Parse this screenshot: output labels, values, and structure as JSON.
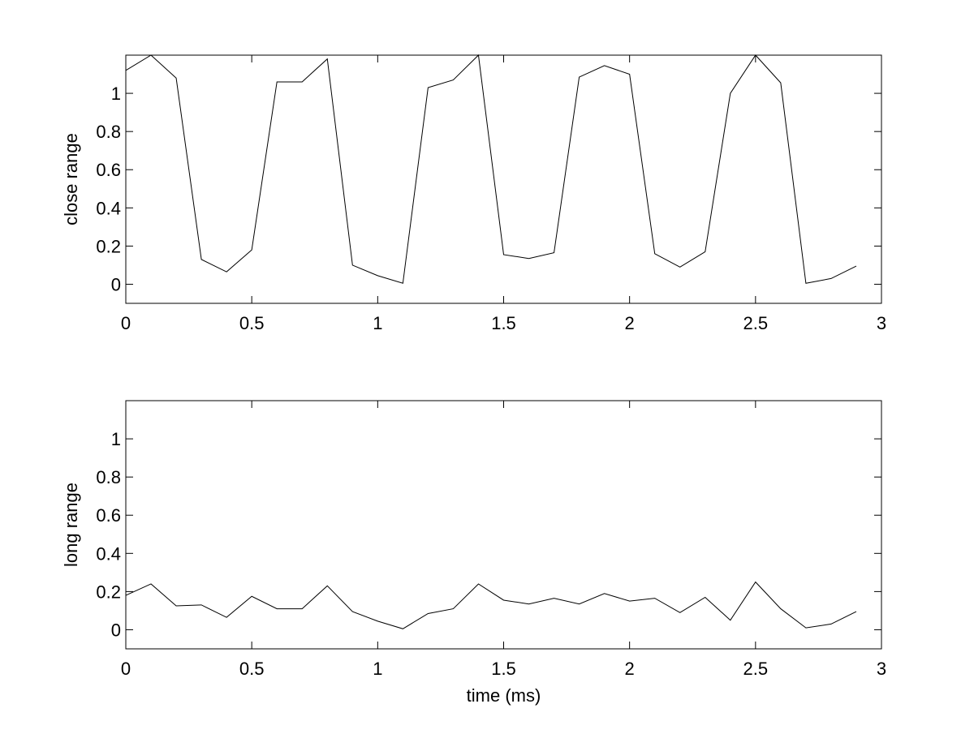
{
  "chart_data": [
    {
      "type": "line",
      "ylabel": "close range",
      "x": [
        0,
        0.1,
        0.2,
        0.3,
        0.4,
        0.5,
        0.6,
        0.7,
        0.8,
        0.9,
        1.0,
        1.1,
        1.2,
        1.3,
        1.4,
        1.5,
        1.6,
        1.7,
        1.8,
        1.9,
        2.0,
        2.1,
        2.2,
        2.3,
        2.4,
        2.5,
        2.6,
        2.7,
        2.8,
        2.9
      ],
      "series": [
        {
          "color": "#000000",
          "values": [
            1.12,
            1.2,
            1.08,
            0.13,
            0.065,
            0.18,
            1.06,
            1.06,
            1.18,
            0.1,
            0.045,
            0.005,
            1.03,
            1.07,
            1.2,
            0.155,
            0.135,
            0.165,
            1.085,
            1.145,
            1.1,
            0.16,
            0.09,
            0.17,
            1.0,
            1.2,
            1.055,
            0.005,
            0.03,
            0.095
          ]
        }
      ],
      "xlim": [
        0,
        3
      ],
      "xticks": [
        0,
        0.5,
        1,
        1.5,
        2,
        2.5,
        3
      ],
      "ylim": [
        -0.1,
        1.2
      ],
      "yticks": [
        0,
        0.2,
        0.4,
        0.6,
        0.8,
        1
      ],
      "grid": false
    },
    {
      "type": "line",
      "ylabel": "long range",
      "xlabel": "time (ms)",
      "x": [
        0,
        0.1,
        0.2,
        0.3,
        0.4,
        0.5,
        0.6,
        0.7,
        0.8,
        0.9,
        1.0,
        1.1,
        1.2,
        1.3,
        1.4,
        1.5,
        1.6,
        1.7,
        1.8,
        1.9,
        2.0,
        2.1,
        2.2,
        2.3,
        2.4,
        2.5,
        2.6,
        2.7,
        2.8,
        2.9
      ],
      "series": [
        {
          "color": "#000000",
          "values": [
            0.18,
            0.24,
            0.125,
            0.13,
            0.065,
            0.175,
            0.11,
            0.11,
            0.23,
            0.095,
            0.045,
            0.005,
            0.085,
            0.11,
            0.24,
            0.155,
            0.135,
            0.165,
            0.135,
            0.19,
            0.15,
            0.165,
            0.09,
            0.17,
            0.05,
            0.25,
            0.11,
            0.01,
            0.03,
            0.095
          ]
        }
      ],
      "xlim": [
        0,
        3
      ],
      "xticks": [
        0,
        0.5,
        1,
        1.5,
        2,
        2.5,
        3
      ],
      "ylim": [
        -0.1,
        1.2
      ],
      "yticks": [
        0,
        0.2,
        0.4,
        0.6,
        0.8,
        1
      ],
      "grid": false
    }
  ]
}
